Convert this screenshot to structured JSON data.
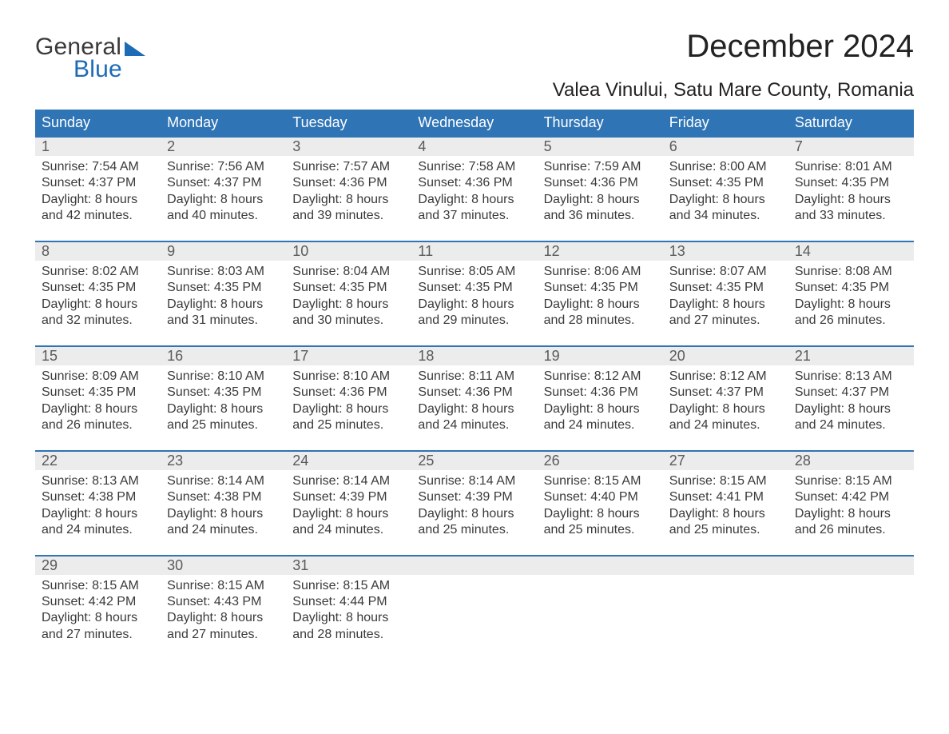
{
  "logo": {
    "text1": "General",
    "text2": "Blue"
  },
  "title": "December 2024",
  "location": "Valea Vinului, Satu Mare County, Romania",
  "colors": {
    "header_bg": "#2f74b5",
    "header_text": "#ffffff",
    "date_row_bg": "#ececec",
    "week_divider": "#2f74b5",
    "body_text": "#3a3a3a",
    "logo_blue": "#1c6bb6",
    "background": "#ffffff"
  },
  "weekdays": [
    "Sunday",
    "Monday",
    "Tuesday",
    "Wednesday",
    "Thursday",
    "Friday",
    "Saturday"
  ],
  "weeks": [
    {
      "days": [
        {
          "date": "1",
          "sunrise": "Sunrise: 7:54 AM",
          "sunset": "Sunset: 4:37 PM",
          "d1": "Daylight: 8 hours",
          "d2": "and 42 minutes."
        },
        {
          "date": "2",
          "sunrise": "Sunrise: 7:56 AM",
          "sunset": "Sunset: 4:37 PM",
          "d1": "Daylight: 8 hours",
          "d2": "and 40 minutes."
        },
        {
          "date": "3",
          "sunrise": "Sunrise: 7:57 AM",
          "sunset": "Sunset: 4:36 PM",
          "d1": "Daylight: 8 hours",
          "d2": "and 39 minutes."
        },
        {
          "date": "4",
          "sunrise": "Sunrise: 7:58 AM",
          "sunset": "Sunset: 4:36 PM",
          "d1": "Daylight: 8 hours",
          "d2": "and 37 minutes."
        },
        {
          "date": "5",
          "sunrise": "Sunrise: 7:59 AM",
          "sunset": "Sunset: 4:36 PM",
          "d1": "Daylight: 8 hours",
          "d2": "and 36 minutes."
        },
        {
          "date": "6",
          "sunrise": "Sunrise: 8:00 AM",
          "sunset": "Sunset: 4:35 PM",
          "d1": "Daylight: 8 hours",
          "d2": "and 34 minutes."
        },
        {
          "date": "7",
          "sunrise": "Sunrise: 8:01 AM",
          "sunset": "Sunset: 4:35 PM",
          "d1": "Daylight: 8 hours",
          "d2": "and 33 minutes."
        }
      ]
    },
    {
      "days": [
        {
          "date": "8",
          "sunrise": "Sunrise: 8:02 AM",
          "sunset": "Sunset: 4:35 PM",
          "d1": "Daylight: 8 hours",
          "d2": "and 32 minutes."
        },
        {
          "date": "9",
          "sunrise": "Sunrise: 8:03 AM",
          "sunset": "Sunset: 4:35 PM",
          "d1": "Daylight: 8 hours",
          "d2": "and 31 minutes."
        },
        {
          "date": "10",
          "sunrise": "Sunrise: 8:04 AM",
          "sunset": "Sunset: 4:35 PM",
          "d1": "Daylight: 8 hours",
          "d2": "and 30 minutes."
        },
        {
          "date": "11",
          "sunrise": "Sunrise: 8:05 AM",
          "sunset": "Sunset: 4:35 PM",
          "d1": "Daylight: 8 hours",
          "d2": "and 29 minutes."
        },
        {
          "date": "12",
          "sunrise": "Sunrise: 8:06 AM",
          "sunset": "Sunset: 4:35 PM",
          "d1": "Daylight: 8 hours",
          "d2": "and 28 minutes."
        },
        {
          "date": "13",
          "sunrise": "Sunrise: 8:07 AM",
          "sunset": "Sunset: 4:35 PM",
          "d1": "Daylight: 8 hours",
          "d2": "and 27 minutes."
        },
        {
          "date": "14",
          "sunrise": "Sunrise: 8:08 AM",
          "sunset": "Sunset: 4:35 PM",
          "d1": "Daylight: 8 hours",
          "d2": "and 26 minutes."
        }
      ]
    },
    {
      "days": [
        {
          "date": "15",
          "sunrise": "Sunrise: 8:09 AM",
          "sunset": "Sunset: 4:35 PM",
          "d1": "Daylight: 8 hours",
          "d2": "and 26 minutes."
        },
        {
          "date": "16",
          "sunrise": "Sunrise: 8:10 AM",
          "sunset": "Sunset: 4:35 PM",
          "d1": "Daylight: 8 hours",
          "d2": "and 25 minutes."
        },
        {
          "date": "17",
          "sunrise": "Sunrise: 8:10 AM",
          "sunset": "Sunset: 4:36 PM",
          "d1": "Daylight: 8 hours",
          "d2": "and 25 minutes."
        },
        {
          "date": "18",
          "sunrise": "Sunrise: 8:11 AM",
          "sunset": "Sunset: 4:36 PM",
          "d1": "Daylight: 8 hours",
          "d2": "and 24 minutes."
        },
        {
          "date": "19",
          "sunrise": "Sunrise: 8:12 AM",
          "sunset": "Sunset: 4:36 PM",
          "d1": "Daylight: 8 hours",
          "d2": "and 24 minutes."
        },
        {
          "date": "20",
          "sunrise": "Sunrise: 8:12 AM",
          "sunset": "Sunset: 4:37 PM",
          "d1": "Daylight: 8 hours",
          "d2": "and 24 minutes."
        },
        {
          "date": "21",
          "sunrise": "Sunrise: 8:13 AM",
          "sunset": "Sunset: 4:37 PM",
          "d1": "Daylight: 8 hours",
          "d2": "and 24 minutes."
        }
      ]
    },
    {
      "days": [
        {
          "date": "22",
          "sunrise": "Sunrise: 8:13 AM",
          "sunset": "Sunset: 4:38 PM",
          "d1": "Daylight: 8 hours",
          "d2": "and 24 minutes."
        },
        {
          "date": "23",
          "sunrise": "Sunrise: 8:14 AM",
          "sunset": "Sunset: 4:38 PM",
          "d1": "Daylight: 8 hours",
          "d2": "and 24 minutes."
        },
        {
          "date": "24",
          "sunrise": "Sunrise: 8:14 AM",
          "sunset": "Sunset: 4:39 PM",
          "d1": "Daylight: 8 hours",
          "d2": "and 24 minutes."
        },
        {
          "date": "25",
          "sunrise": "Sunrise: 8:14 AM",
          "sunset": "Sunset: 4:39 PM",
          "d1": "Daylight: 8 hours",
          "d2": "and 25 minutes."
        },
        {
          "date": "26",
          "sunrise": "Sunrise: 8:15 AM",
          "sunset": "Sunset: 4:40 PM",
          "d1": "Daylight: 8 hours",
          "d2": "and 25 minutes."
        },
        {
          "date": "27",
          "sunrise": "Sunrise: 8:15 AM",
          "sunset": "Sunset: 4:41 PM",
          "d1": "Daylight: 8 hours",
          "d2": "and 25 minutes."
        },
        {
          "date": "28",
          "sunrise": "Sunrise: 8:15 AM",
          "sunset": "Sunset: 4:42 PM",
          "d1": "Daylight: 8 hours",
          "d2": "and 26 minutes."
        }
      ]
    },
    {
      "days": [
        {
          "date": "29",
          "sunrise": "Sunrise: 8:15 AM",
          "sunset": "Sunset: 4:42 PM",
          "d1": "Daylight: 8 hours",
          "d2": "and 27 minutes."
        },
        {
          "date": "30",
          "sunrise": "Sunrise: 8:15 AM",
          "sunset": "Sunset: 4:43 PM",
          "d1": "Daylight: 8 hours",
          "d2": "and 27 minutes."
        },
        {
          "date": "31",
          "sunrise": "Sunrise: 8:15 AM",
          "sunset": "Sunset: 4:44 PM",
          "d1": "Daylight: 8 hours",
          "d2": "and 28 minutes."
        },
        null,
        null,
        null,
        null
      ]
    }
  ]
}
